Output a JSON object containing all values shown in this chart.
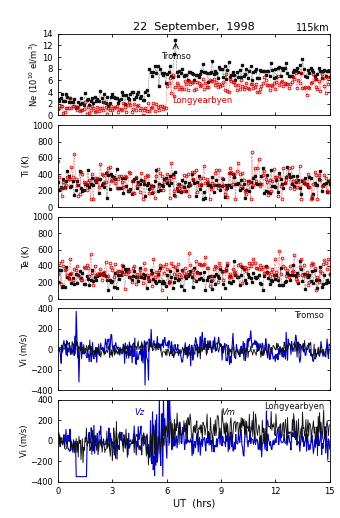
{
  "title": "22  September,  1998",
  "title_right": "115km",
  "xlabel": "UT  (hrs)",
  "ylabel_ne": "Ne (10$^{10}$ el/m$^3$)",
  "ylabel_ti": "Ti (K)",
  "ylabel_te": "Te (K)",
  "ylabel_vi": "Vi (m/s)",
  "ne_ylim": [
    0,
    14
  ],
  "ne_yticks": [
    0,
    2,
    4,
    6,
    8,
    10,
    12,
    14
  ],
  "ti_ylim": [
    0,
    1000
  ],
  "ti_yticks": [
    0,
    200,
    400,
    600,
    800,
    1000
  ],
  "te_ylim": [
    0,
    1000
  ],
  "te_yticks": [
    0,
    200,
    400,
    600,
    800,
    1000
  ],
  "vi_ylim": [
    -400,
    400
  ],
  "vi_yticks": [
    -400,
    -200,
    0,
    200,
    400
  ],
  "xlim": [
    0,
    15
  ],
  "xticks": [
    0,
    3,
    6,
    9,
    12,
    15
  ],
  "tromso_label": "Tromso",
  "longyearbyen_label": "Longyearbyen",
  "vz_label": "Vz",
  "vm_label": "Vm",
  "black_color": "#111111",
  "red_color": "#dd0000",
  "blue_color": "#0000cc",
  "background": "#ffffff"
}
